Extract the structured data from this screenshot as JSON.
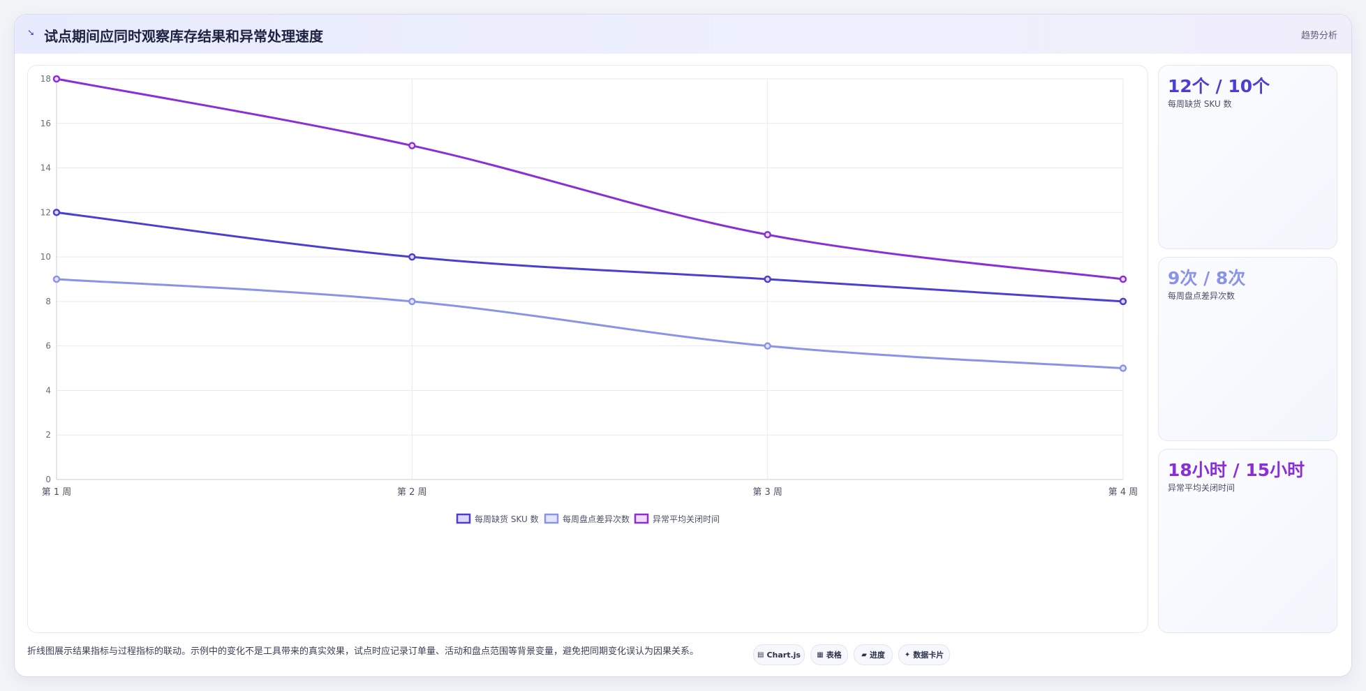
{
  "header": {
    "title": "试点期间应同时观察库存结果和异常处理速度",
    "tag": "趋势分析",
    "icon": "trend-line-icon"
  },
  "kpis": [
    {
      "value": "12个 / 10个",
      "label": "每周缺货 SKU 数",
      "color": "#4b3fd0"
    },
    {
      "value": "9次 / 8次",
      "label": "每周盘点差异次数",
      "color": "#8a94e6"
    },
    {
      "value": "18小时 / 15小时",
      "label": "异常平均关闭时间",
      "color": "#8a2fd6"
    }
  ],
  "footnote": "折线图展示结果指标与过程指标的联动。示例中的变化不是工具带来的真实效果，试点时应记录订单量、活动和盘点范围等背景变量，避免把同期变化误认为因果关系。",
  "chips": [
    {
      "icon": "chart-icon",
      "glyph": "▤",
      "label": "Chart.js"
    },
    {
      "icon": "table-icon",
      "glyph": "▦",
      "label": "表格"
    },
    {
      "icon": "progress-icon",
      "glyph": "▰",
      "label": "进度"
    },
    {
      "icon": "sparkle-icon",
      "glyph": "✦",
      "label": "数据卡片"
    }
  ],
  "chart_data": {
    "type": "line",
    "categories": [
      "第 1 周",
      "第 2 周",
      "第 3 周",
      "第 4 周"
    ],
    "series": [
      {
        "name": "每周缺货 SKU 数",
        "values": [
          12,
          10,
          9,
          8
        ],
        "color": "#4b3fd0",
        "fill": "#dcd9f7"
      },
      {
        "name": "每周盘点差异次数",
        "values": [
          9,
          8,
          6,
          5
        ],
        "color": "#8a94e6",
        "fill": "#e3e6fb"
      },
      {
        "name": "异常平均关闭时间",
        "values": [
          18,
          15,
          11,
          9
        ],
        "color": "#8a2fd6",
        "fill": "#f1dcfb"
      }
    ],
    "ylim": [
      0,
      18
    ],
    "yticks": [
      0,
      2,
      4,
      6,
      8,
      10,
      12,
      14,
      16,
      18
    ],
    "grid": true,
    "legend": "bottom-center"
  }
}
